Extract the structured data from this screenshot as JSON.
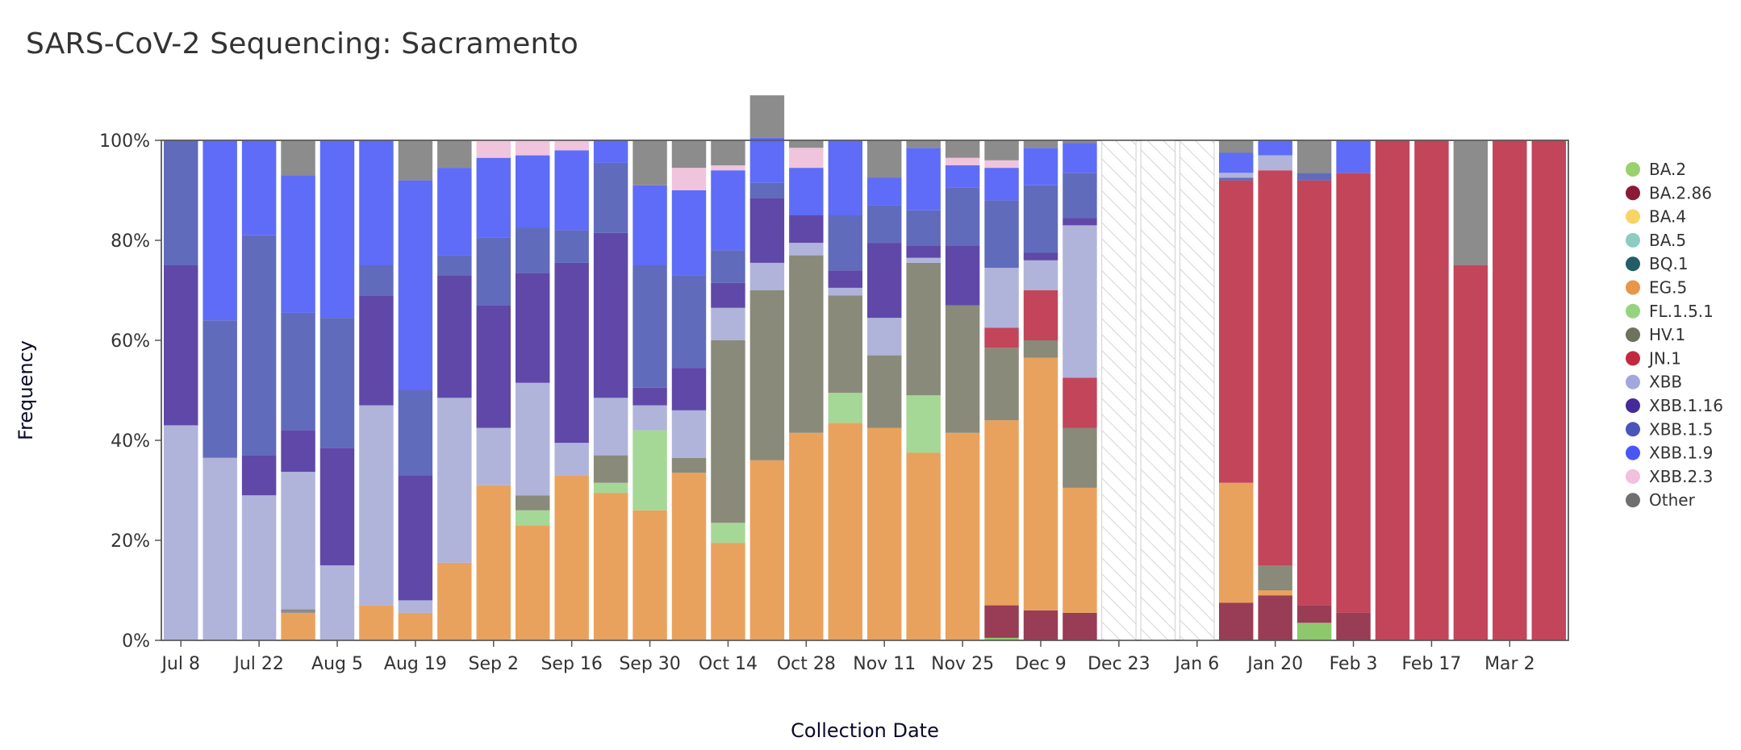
{
  "title": "SARS-CoV-2 Sequencing: Sacramento",
  "chart_data": {
    "type": "bar",
    "stacked": true,
    "normalized": true,
    "xlabel": "Collection Date",
    "ylabel": "Frequency",
    "ylim": [
      0,
      100
    ],
    "yticks": [
      "0%",
      "20%",
      "40%",
      "60%",
      "80%",
      "100%"
    ],
    "x_tick_labels": [
      "Jul 8",
      "Jul 22",
      "Aug 5",
      "Aug 19",
      "Sep 2",
      "Sep 16",
      "Sep 30",
      "Oct 14",
      "Oct 28",
      "Nov 11",
      "Nov 25",
      "Dec 9",
      "Dec 23",
      "Jan 6",
      "Jan 20",
      "Feb 3",
      "Feb 17",
      "Mar 2"
    ],
    "legend_position": "right",
    "no_data_weeks": [
      24,
      25,
      26
    ],
    "lineages": [
      {
        "name": "BA.2",
        "color": "#8dc86d",
        "legend_color": "#9bd06e"
      },
      {
        "name": "BA.2.86",
        "color": "#993c55",
        "legend_color": "#8b1a35"
      },
      {
        "name": "BA.4",
        "color": "#f7d465",
        "legend_color": "#f7d465"
      },
      {
        "name": "BA.5",
        "color": "#8ecbc2",
        "legend_color": "#8ecbc2"
      },
      {
        "name": "BQ.1",
        "color": "#225e66",
        "legend_color": "#225e66"
      },
      {
        "name": "EG.5",
        "color": "#e9a25d",
        "legend_color": "#e9954a"
      },
      {
        "name": "FL.1.5.1",
        "color": "#a5d797",
        "legend_color": "#96d37e"
      },
      {
        "name": "HV.1",
        "color": "#8a8a7a",
        "legend_color": "#6f705e"
      },
      {
        "name": "JN.1",
        "color": "#c3455a",
        "legend_color": "#c2293f"
      },
      {
        "name": "XBB",
        "color": "#b0b4da",
        "legend_color": "#a2a8dd"
      },
      {
        "name": "XBB.1.16",
        "color": "#5f48a8",
        "legend_color": "#452b99"
      },
      {
        "name": "XBB.1.5",
        "color": "#606bbc",
        "legend_color": "#4a55bb"
      },
      {
        "name": "XBB.1.9",
        "color": "#5e6cf7",
        "legend_color": "#4a56f3"
      },
      {
        "name": "XBB.2.3",
        "color": "#efc4dc",
        "legend_color": "#f2bfdc"
      },
      {
        "name": "Other",
        "color": "#8c8c8c",
        "legend_color": "#6f6f6f"
      }
    ],
    "weeks": [
      {
        "segments": [
          [
            "XBB",
            43
          ],
          [
            "XBB.1.16",
            32
          ],
          [
            "XBB.1.5",
            25
          ]
        ]
      },
      {
        "segments": [
          [
            "XBB",
            36.5
          ],
          [
            "XBB.1.5",
            27.5
          ],
          [
            "XBB.1.9",
            36
          ]
        ]
      },
      {
        "segments": [
          [
            "XBB",
            29
          ],
          [
            "XBB.1.16",
            8
          ],
          [
            "XBB.1.5",
            44
          ],
          [
            "XBB.1.9",
            19
          ]
        ]
      },
      {
        "segments": [
          [
            "EG.5",
            5.5
          ],
          [
            "Other",
            0.7
          ],
          [
            "XBB",
            27.5
          ],
          [
            "XBB.1.16",
            8.3
          ],
          [
            "XBB.1.5",
            23.5
          ],
          [
            "XBB.1.9",
            27.5
          ],
          [
            "Other",
            7
          ]
        ]
      },
      {
        "segments": [
          [
            "XBB",
            15
          ],
          [
            "XBB.1.16",
            23.5
          ],
          [
            "XBB.1.5",
            26
          ],
          [
            "XBB.1.9",
            35.5
          ]
        ]
      },
      {
        "segments": [
          [
            "EG.5",
            7
          ],
          [
            "XBB",
            40
          ],
          [
            "XBB.1.16",
            22
          ],
          [
            "XBB.1.5",
            6
          ],
          [
            "XBB.1.9",
            25
          ]
        ]
      },
      {
        "segments": [
          [
            "EG.5",
            5.5
          ],
          [
            "XBB",
            2.5
          ],
          [
            "XBB.1.16",
            25
          ],
          [
            "XBB.1.5",
            17
          ],
          [
            "XBB.1.9",
            42
          ],
          [
            "Other",
            8
          ]
        ]
      },
      {
        "segments": [
          [
            "EG.5",
            15.5
          ],
          [
            "XBB",
            33
          ],
          [
            "XBB.1.16",
            24.5
          ],
          [
            "XBB.1.5",
            4
          ],
          [
            "XBB.1.9",
            17.5
          ],
          [
            "Other",
            5.5
          ]
        ]
      },
      {
        "segments": [
          [
            "EG.5",
            31
          ],
          [
            "XBB",
            11.5
          ],
          [
            "XBB.1.16",
            24.5
          ],
          [
            "XBB.1.5",
            13.5
          ],
          [
            "XBB.1.9",
            16
          ],
          [
            "XBB.2.3",
            3.5
          ]
        ]
      },
      {
        "segments": [
          [
            "EG.5",
            23
          ],
          [
            "FL.1.5.1",
            3
          ],
          [
            "HV.1",
            3
          ],
          [
            "XBB",
            22.5
          ],
          [
            "XBB.1.16",
            22
          ],
          [
            "XBB.1.5",
            9
          ],
          [
            "XBB.1.9",
            14.5
          ],
          [
            "XBB.2.3",
            3
          ]
        ]
      },
      {
        "segments": [
          [
            "EG.5",
            33
          ],
          [
            "XBB",
            6.5
          ],
          [
            "XBB.1.16",
            36
          ],
          [
            "XBB.1.5",
            6.5
          ],
          [
            "XBB.1.9",
            16
          ],
          [
            "XBB.2.3",
            2
          ]
        ]
      },
      {
        "segments": [
          [
            "EG.5",
            29.5
          ],
          [
            "FL.1.5.1",
            2
          ],
          [
            "HV.1",
            5.5
          ],
          [
            "XBB",
            11.5
          ],
          [
            "XBB.1.16",
            33
          ],
          [
            "XBB.1.5",
            14
          ],
          [
            "XBB.1.9",
            4.5
          ]
        ]
      },
      {
        "segments": [
          [
            "EG.5",
            26
          ],
          [
            "FL.1.5.1",
            16
          ],
          [
            "XBB",
            5
          ],
          [
            "XBB.1.16",
            3.5
          ],
          [
            "XBB.1.5",
            24.5
          ],
          [
            "XBB.1.9",
            16
          ],
          [
            "Other",
            9
          ]
        ]
      },
      {
        "segments": [
          [
            "EG.5",
            33.5
          ],
          [
            "HV.1",
            3
          ],
          [
            "XBB",
            9.5
          ],
          [
            "XBB.1.16",
            8.5
          ],
          [
            "XBB.1.5",
            18.5
          ],
          [
            "XBB.1.9",
            17
          ],
          [
            "XBB.2.3",
            4.5
          ],
          [
            "Other",
            5.5
          ]
        ]
      },
      {
        "segments": [
          [
            "EG.5",
            19.5
          ],
          [
            "FL.1.5.1",
            4
          ],
          [
            "HV.1",
            36.5
          ],
          [
            "XBB",
            6.5
          ],
          [
            "XBB.1.16",
            5
          ],
          [
            "XBB.1.5",
            6.5
          ],
          [
            "XBB.1.9",
            16
          ],
          [
            "XBB.2.3",
            1
          ],
          [
            "Other",
            5
          ]
        ]
      },
      {
        "segments": [
          [
            "EG.5",
            36
          ],
          [
            "HV.1",
            34
          ],
          [
            "XBB",
            5.5
          ],
          [
            "XBB.1.16",
            13
          ],
          [
            "XBB.1.5",
            3
          ],
          [
            "XBB.1.9",
            9
          ],
          [
            "Other",
            8.5
          ]
        ]
      },
      {
        "segments": [
          [
            "EG.5",
            41.5
          ],
          [
            "HV.1",
            35.5
          ],
          [
            "XBB",
            2.5
          ],
          [
            "XBB.1.16",
            5.5
          ],
          [
            "XBB.1.9",
            9.5
          ],
          [
            "XBB.2.3",
            4
          ],
          [
            "Other",
            1.5
          ]
        ]
      },
      {
        "segments": [
          [
            "EG.5",
            43.5
          ],
          [
            "FL.1.5.1",
            6
          ],
          [
            "HV.1",
            19.5
          ],
          [
            "XBB",
            1.5
          ],
          [
            "XBB.1.16",
            3.5
          ],
          [
            "XBB.1.5",
            11
          ],
          [
            "XBB.1.9",
            15
          ]
        ]
      },
      {
        "segments": [
          [
            "EG.5",
            42.5
          ],
          [
            "HV.1",
            14.5
          ],
          [
            "XBB",
            7.5
          ],
          [
            "XBB.1.16",
            15
          ],
          [
            "XBB.1.5",
            7.5
          ],
          [
            "XBB.1.9",
            5.5
          ],
          [
            "Other",
            7.5
          ]
        ]
      },
      {
        "segments": [
          [
            "EG.5",
            37.5
          ],
          [
            "FL.1.5.1",
            11.5
          ],
          [
            "HV.1",
            26.5
          ],
          [
            "XBB",
            1
          ],
          [
            "XBB.1.16",
            2.5
          ],
          [
            "XBB.1.5",
            7
          ],
          [
            "XBB.1.9",
            12.5
          ],
          [
            "Other",
            1.5
          ]
        ]
      },
      {
        "segments": [
          [
            "EG.5",
            41.5
          ],
          [
            "HV.1",
            25.5
          ],
          [
            "XBB.1.16",
            12
          ],
          [
            "XBB.1.5",
            11.5
          ],
          [
            "XBB.1.9",
            4.5
          ],
          [
            "XBB.2.3",
            1.5
          ],
          [
            "Other",
            3.5
          ]
        ]
      },
      {
        "segments": [
          [
            "BA.2",
            0.5
          ],
          [
            "BA.2.86",
            6.5
          ],
          [
            "EG.5",
            37
          ],
          [
            "HV.1",
            14.5
          ],
          [
            "JN.1",
            4
          ],
          [
            "XBB",
            12
          ],
          [
            "XBB.1.5",
            13.5
          ],
          [
            "XBB.1.9",
            6.5
          ],
          [
            "XBB.2.3",
            1.5
          ],
          [
            "Other",
            4
          ]
        ]
      },
      {
        "segments": [
          [
            "BA.2.86",
            6
          ],
          [
            "EG.5",
            50.5
          ],
          [
            "HV.1",
            3.5
          ],
          [
            "JN.1",
            10
          ],
          [
            "XBB",
            6
          ],
          [
            "XBB.1.16",
            1.5
          ],
          [
            "XBB.1.5",
            13.5
          ],
          [
            "XBB.1.9",
            7.5
          ],
          [
            "Other",
            1.5
          ]
        ]
      },
      {
        "segments": [
          [
            "BA.2.86",
            5.5
          ],
          [
            "EG.5",
            25
          ],
          [
            "HV.1",
            12
          ],
          [
            "JN.1",
            10
          ],
          [
            "XBB",
            30.5
          ],
          [
            "XBB.1.16",
            1.5
          ],
          [
            "XBB.1.5",
            9
          ],
          [
            "XBB.1.9",
            6
          ],
          [
            "Other",
            0.5
          ]
        ]
      },
      {
        "segments": []
      },
      {
        "segments": []
      },
      {
        "segments": []
      },
      {
        "segments": [
          [
            "BA.2.86",
            7.5
          ],
          [
            "EG.5",
            24
          ],
          [
            "JN.1",
            60.5
          ],
          [
            "XBB.1.5",
            0.5
          ],
          [
            "XBB",
            1
          ],
          [
            "XBB.1.9",
            4
          ],
          [
            "Other",
            2.5
          ]
        ]
      },
      {
        "segments": [
          [
            "BA.2.86",
            9
          ],
          [
            "EG.5",
            1
          ],
          [
            "HV.1",
            5
          ],
          [
            "JN.1",
            79
          ],
          [
            "XBB",
            3
          ],
          [
            "XBB.1.9",
            3
          ]
        ]
      },
      {
        "segments": [
          [
            "BA.2",
            3.5
          ],
          [
            "BA.2.86",
            3.5
          ],
          [
            "JN.1",
            85
          ],
          [
            "XBB.1.5",
            1.5
          ],
          [
            "Other",
            6.5
          ]
        ]
      },
      {
        "segments": [
          [
            "BA.2.86",
            5.5
          ],
          [
            "JN.1",
            88
          ],
          [
            "XBB.1.9",
            6.5
          ]
        ]
      },
      {
        "segments": [
          [
            "JN.1",
            100
          ]
        ]
      },
      {
        "segments": [
          [
            "JN.1",
            100
          ]
        ]
      },
      {
        "segments": [
          [
            "JN.1",
            75
          ],
          [
            "Other",
            25
          ]
        ]
      },
      {
        "segments": [
          [
            "JN.1",
            100
          ]
        ]
      },
      {
        "segments": [
          [
            "JN.1",
            100
          ]
        ]
      }
    ]
  }
}
